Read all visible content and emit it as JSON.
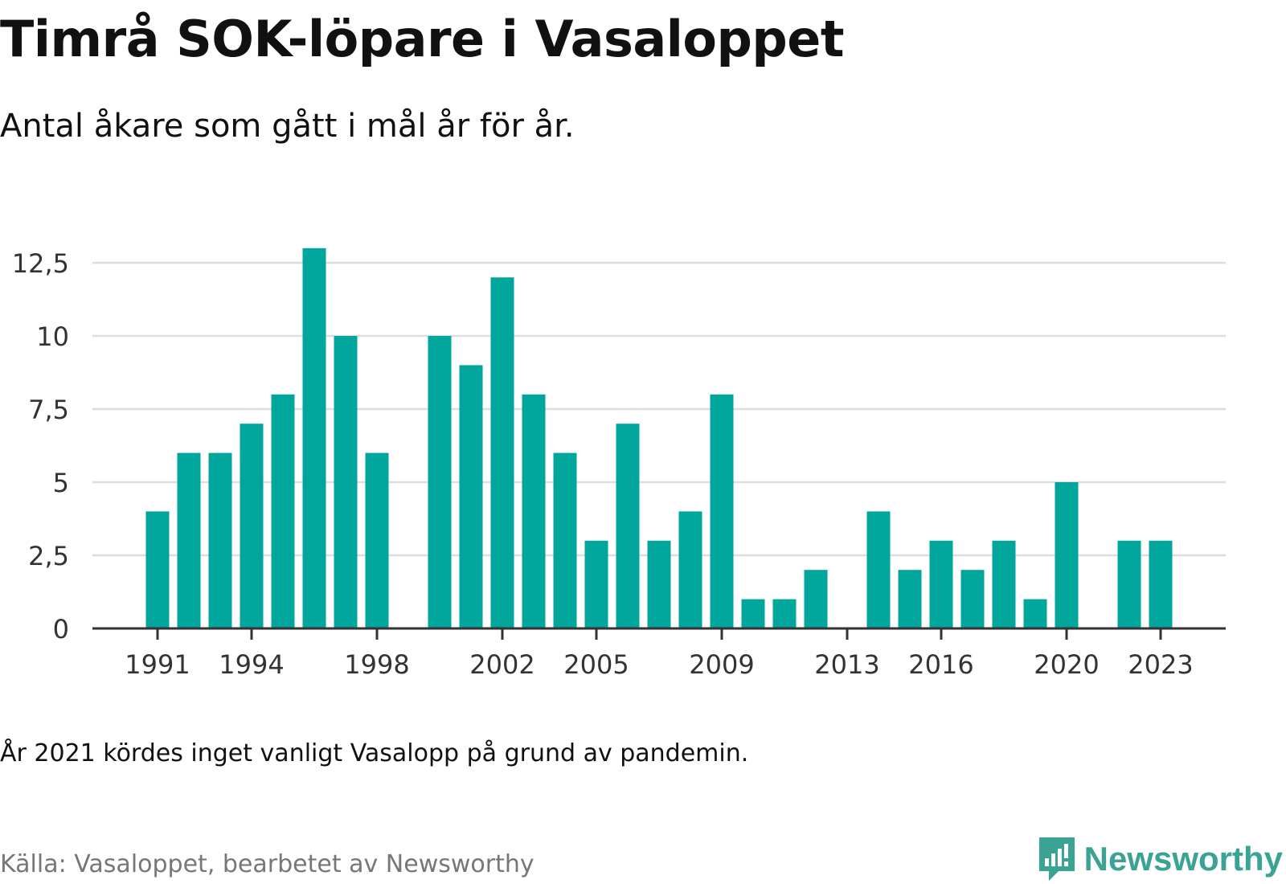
{
  "header": {
    "title": "Timrå SOK-löpare i Vasaloppet",
    "subtitle": "Antal åkare som gått i mål år för år."
  },
  "footer": {
    "note": "År 2021 kördes inget vanligt Vasalopp på grund av pandemin.",
    "source": "Källa: Vasaloppet, bearbetet av Newsworthy",
    "brand": "Newsworthy"
  },
  "colors": {
    "bar": "#00a69c",
    "grid": "#dddddd",
    "axis": "#333333",
    "brand": "#3aa394"
  },
  "chart_data": {
    "type": "bar",
    "title": "Timrå SOK-löpare i Vasaloppet",
    "subtitle": "Antal åkare som gått i mål år för år.",
    "xlabel": "",
    "ylabel": "",
    "categories": [
      1991,
      1992,
      1993,
      1994,
      1995,
      1996,
      1997,
      1998,
      1999,
      2000,
      2001,
      2002,
      2003,
      2004,
      2005,
      2006,
      2007,
      2008,
      2009,
      2010,
      2011,
      2012,
      2013,
      2014,
      2015,
      2016,
      2017,
      2018,
      2019,
      2020,
      2021,
      2022,
      2023
    ],
    "values": [
      4,
      6,
      6,
      7,
      8,
      13,
      10,
      6,
      0,
      10,
      9,
      12,
      8,
      6,
      3,
      7,
      3,
      4,
      8,
      1,
      1,
      2,
      0,
      4,
      2,
      3,
      2,
      3,
      1,
      5,
      0,
      3,
      3
    ],
    "x_tick_labels": [
      "1991",
      "1994",
      "1998",
      "2002",
      "2005",
      "2009",
      "2013",
      "2016",
      "2020",
      "2023"
    ],
    "y_ticks": [
      0,
      2.5,
      5,
      7.5,
      10,
      12.5
    ],
    "y_tick_labels": [
      "0",
      "2,5",
      "5",
      "7,5",
      "10",
      "12,5"
    ],
    "ylim": [
      0,
      13
    ],
    "grid": true,
    "legend": "none"
  }
}
